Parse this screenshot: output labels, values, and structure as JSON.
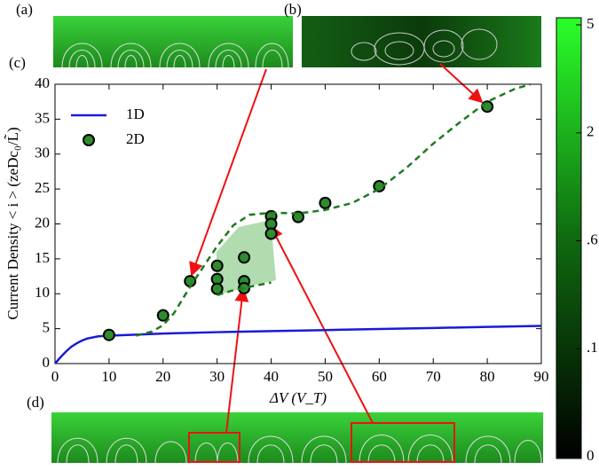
{
  "chart_data": {
    "type": "line",
    "panel_labels": [
      "(a)",
      "(b)",
      "(c)",
      "(d)"
    ],
    "xlabel": "ΔV (V_T)",
    "ylabel": "Current Density < i >  (zeDc₀/L̃)",
    "xlim": [
      0,
      90
    ],
    "ylim": [
      0,
      40
    ],
    "xticks": [
      0,
      10,
      20,
      30,
      40,
      50,
      60,
      70,
      80,
      90
    ],
    "yticks": [
      0,
      5,
      10,
      15,
      20,
      25,
      30,
      35,
      40
    ],
    "legend": "upper left",
    "series": [
      {
        "name": "1D",
        "type": "line",
        "color": "#1a1ad6",
        "x": [
          0,
          1,
          2,
          3,
          4,
          5,
          6,
          8,
          10,
          15,
          20,
          30,
          40,
          50,
          60,
          70,
          80,
          90
        ],
        "values": [
          0,
          0.9,
          1.7,
          2.4,
          2.9,
          3.3,
          3.6,
          3.9,
          4.0,
          4.15,
          4.3,
          4.5,
          4.65,
          4.8,
          4.95,
          5.1,
          5.25,
          5.4
        ]
      },
      {
        "name": "2D",
        "type": "scatter",
        "color": "#2e8b2e",
        "x": [
          10,
          20,
          25,
          30,
          30,
          30,
          35,
          35,
          35,
          40,
          40,
          40,
          45,
          50,
          60,
          80
        ],
        "values": [
          4.1,
          6.9,
          11.8,
          14,
          12.1,
          10.7,
          15.2,
          11.8,
          10.8,
          21.1,
          20,
          18.6,
          21,
          23,
          25.4,
          36.8
        ]
      },
      {
        "type": "dashed",
        "color": "#1f7a1f",
        "x": [
          15,
          18,
          20,
          22,
          25,
          28,
          30,
          33,
          36,
          40,
          45,
          50,
          55,
          60,
          65,
          70,
          75,
          80,
          85,
          88
        ],
        "values": [
          4,
          4.6,
          5.5,
          7.2,
          11,
          14.5,
          16.8,
          19.8,
          21.3,
          21.6,
          21.5,
          22,
          23,
          25,
          28,
          31.5,
          34.6,
          37.5,
          39.3,
          40
        ]
      },
      {
        "type": "dashed",
        "color": "#1f7a1f",
        "x": [
          30,
          33,
          36,
          40
        ],
        "values": [
          9.8,
          10.5,
          11,
          11.6
        ]
      }
    ],
    "colorbar": {
      "ticks": [
        0,
        {
          "value": 0.1,
          "label": ".1"
        },
        {
          "value": 0.6,
          "label": ".6"
        },
        2,
        5
      ]
    }
  }
}
